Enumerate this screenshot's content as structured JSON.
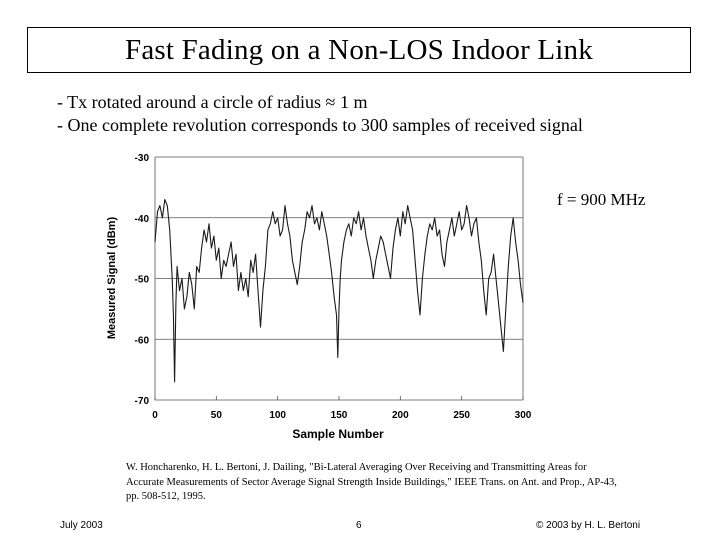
{
  "slide": {
    "title": "Fast Fading on a Non-LOS Indoor Link",
    "bullets": [
      "- Tx rotated around a circle of radius ≈ 1 m",
      "- One complete revolution corresponds to 300 samples of received signal"
    ],
    "annotation": "f = 900 MHz",
    "citation": "W. Honcharenko, H. L. Bertoni, J. Dailing, \"Bi-Lateral Averaging Over Receiving and Transmitting Areas for Accurate Measurements of Sector Average Signal Strength Inside Buildings,\" IEEE Trans. on Ant. and Prop., AP-43, pp. 508-512, 1995.",
    "footer": {
      "date": "July 2003",
      "page": "6",
      "copyright": "© 2003 by H. L. Bertoni"
    }
  },
  "chart_data": {
    "type": "line",
    "title": "",
    "xlabel": "Sample Number",
    "ylabel": "Measured Signal (dBm)",
    "xlim": [
      0,
      300
    ],
    "ylim": [
      -70,
      -30
    ],
    "xticks": [
      0,
      50,
      100,
      150,
      200,
      250,
      300
    ],
    "yticks": [
      -30,
      -40,
      -50,
      -60,
      -70
    ],
    "grid": "horizontal",
    "series": [
      {
        "name": "Measured Signal",
        "x": [
          0,
          2,
          4,
          6,
          8,
          10,
          12,
          14,
          15,
          16,
          17,
          18,
          19,
          20,
          22,
          24,
          26,
          28,
          30,
          32,
          34,
          36,
          38,
          40,
          42,
          44,
          46,
          48,
          50,
          52,
          54,
          56,
          58,
          60,
          62,
          64,
          66,
          68,
          70,
          72,
          74,
          76,
          78,
          80,
          82,
          84,
          86,
          88,
          90,
          92,
          94,
          96,
          98,
          100,
          102,
          104,
          106,
          108,
          110,
          112,
          114,
          116,
          118,
          120,
          122,
          124,
          126,
          128,
          130,
          132,
          134,
          136,
          138,
          140,
          142,
          144,
          146,
          148,
          149,
          150,
          151,
          152,
          154,
          156,
          158,
          160,
          162,
          164,
          166,
          168,
          170,
          172,
          174,
          176,
          178,
          180,
          182,
          184,
          186,
          188,
          190,
          192,
          194,
          196,
          198,
          200,
          202,
          204,
          206,
          208,
          210,
          212,
          214,
          216,
          218,
          220,
          222,
          224,
          226,
          228,
          230,
          232,
          234,
          236,
          238,
          240,
          242,
          244,
          246,
          248,
          250,
          252,
          254,
          256,
          258,
          260,
          262,
          264,
          266,
          268,
          270,
          272,
          274,
          276,
          278,
          280,
          282,
          284,
          286,
          288,
          290,
          292,
          294,
          296,
          298,
          300
        ],
        "values": [
          -44,
          -39,
          -38,
          -40,
          -37,
          -38,
          -42,
          -50,
          -56,
          -67,
          -54,
          -48,
          -50,
          -52,
          -50,
          -55,
          -53,
          -49,
          -51,
          -55,
          -48,
          -49,
          -45,
          -42,
          -44,
          -41,
          -45,
          -43,
          -47,
          -45,
          -50,
          -47,
          -48,
          -46,
          -44,
          -48,
          -46,
          -52,
          -49,
          -52,
          -50,
          -53,
          -47,
          -49,
          -46,
          -52,
          -58,
          -52,
          -48,
          -42,
          -41,
          -39,
          -41,
          -40,
          -43,
          -42,
          -38,
          -41,
          -43,
          -47,
          -49,
          -51,
          -48,
          -44,
          -42,
          -39,
          -40,
          -38,
          -41,
          -40,
          -42,
          -39,
          -41,
          -43,
          -46,
          -49,
          -53,
          -56,
          -63,
          -55,
          -50,
          -47,
          -44,
          -42,
          -41,
          -43,
          -40,
          -41,
          -39,
          -42,
          -40,
          -43,
          -45,
          -47,
          -50,
          -47,
          -45,
          -43,
          -44,
          -46,
          -48,
          -50,
          -45,
          -42,
          -40,
          -43,
          -39,
          -41,
          -38,
          -40,
          -42,
          -47,
          -52,
          -56,
          -50,
          -46,
          -43,
          -41,
          -42,
          -40,
          -43,
          -42,
          -46,
          -48,
          -44,
          -42,
          -40,
          -43,
          -41,
          -39,
          -42,
          -41,
          -38,
          -40,
          -43,
          -41,
          -40,
          -44,
          -47,
          -52,
          -56,
          -50,
          -49,
          -46,
          -50,
          -54,
          -58,
          -62,
          -55,
          -48,
          -43,
          -40,
          -44,
          -47,
          -51,
          -54
        ]
      }
    ]
  }
}
